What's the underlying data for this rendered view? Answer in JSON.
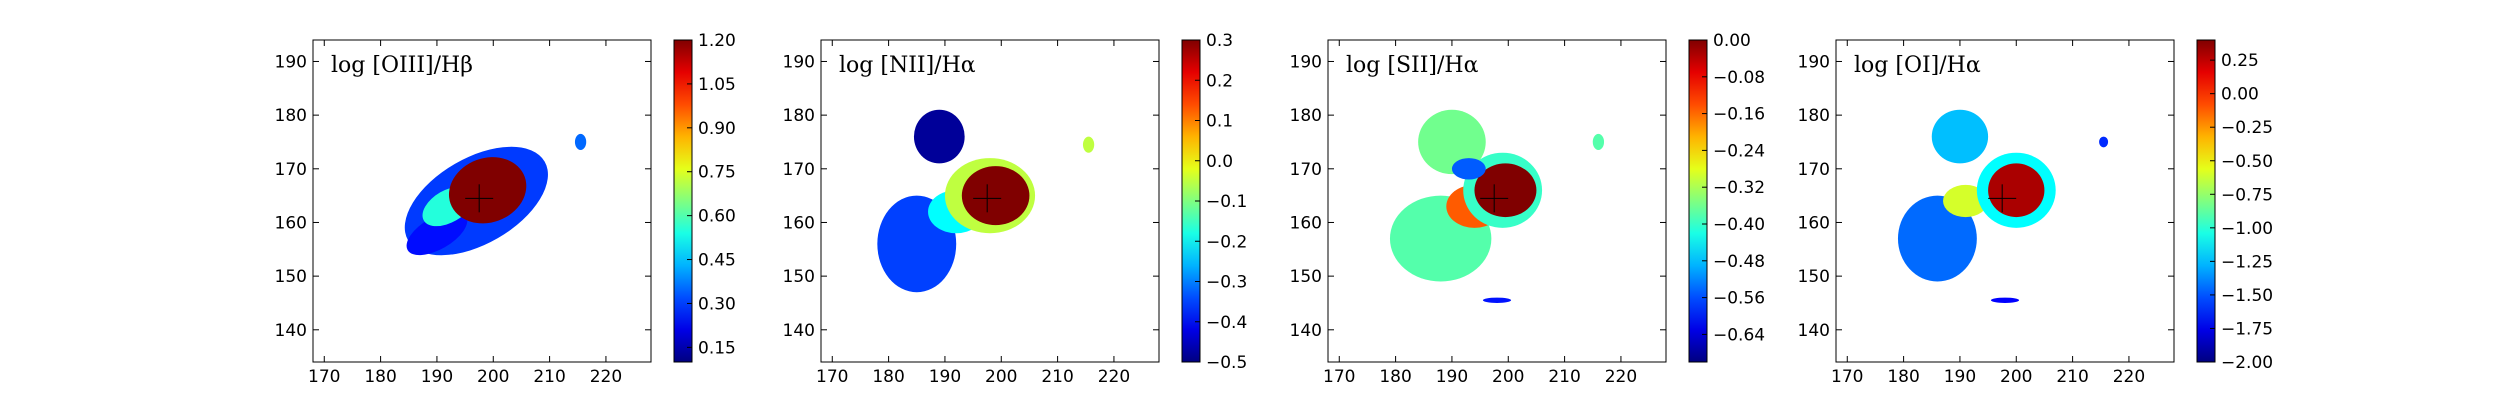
{
  "chart_data": [
    {
      "type": "heatmap",
      "title": "log [OIII]/Hβ",
      "xticks": [
        170,
        180,
        190,
        200,
        210,
        220
      ],
      "yticks": [
        140,
        150,
        160,
        170,
        180,
        190
      ],
      "xlim": [
        168,
        228
      ],
      "ylim": [
        134,
        194
      ],
      "colorbar": {
        "ticks": [
          "0.15",
          "0.30",
          "0.45",
          "0.60",
          "0.75",
          "0.90",
          "1.05",
          "1.20"
        ],
        "vmin": 0.1,
        "vmax": 1.2
      },
      "regions": [
        {
          "cx": 197,
          "cy": 164,
          "rx": 14,
          "ry": 8,
          "rot": -30,
          "value": 0.3
        },
        {
          "cx": 190,
          "cy": 158,
          "rx": 6,
          "ry": 3,
          "rot": -30,
          "value": 0.25
        },
        {
          "cx": 192,
          "cy": 163,
          "rx": 5,
          "ry": 3,
          "rot": -30,
          "value": 0.55
        },
        {
          "cx": 199,
          "cy": 166,
          "rx": 7,
          "ry": 6,
          "rot": -20,
          "value": 1.2
        },
        {
          "cx": 215.5,
          "cy": 175,
          "rx": 1,
          "ry": 1.5,
          "rot": 0,
          "value": 0.35
        }
      ],
      "cross": [
        197.5,
        164.5
      ]
    },
    {
      "type": "heatmap",
      "title": "log [NII]/Hα",
      "xticks": [
        170,
        180,
        190,
        200,
        210,
        220
      ],
      "yticks": [
        140,
        150,
        160,
        170,
        180,
        190
      ],
      "xlim": [
        168,
        228
      ],
      "ylim": [
        134,
        194
      ],
      "colorbar": {
        "ticks": [
          "0.3",
          "0.2",
          "0.1",
          "0.0",
          "−0.1",
          "−0.2",
          "−0.3",
          "−0.4",
          "−0.5"
        ],
        "vmin": -0.5,
        "vmax": 0.3
      },
      "regions": [
        {
          "cx": 185,
          "cy": 156,
          "rx": 7,
          "ry": 9,
          "rot": 0,
          "value": -0.35
        },
        {
          "cx": 192,
          "cy": 162,
          "rx": 5,
          "ry": 4,
          "rot": 0,
          "value": -0.2
        },
        {
          "cx": 198,
          "cy": 165,
          "rx": 8,
          "ry": 7,
          "rot": 0,
          "value": -0.05
        },
        {
          "cx": 199,
          "cy": 165,
          "rx": 6,
          "ry": 5.5,
          "rot": 0,
          "value": 0.3
        },
        {
          "cx": 189,
          "cy": 176,
          "rx": 4.5,
          "ry": 5,
          "rot": 0,
          "value": -0.48
        },
        {
          "cx": 215.5,
          "cy": 174.5,
          "rx": 1,
          "ry": 1.5,
          "rot": 0,
          "value": -0.05
        }
      ],
      "cross": [
        197.5,
        164.5
      ]
    },
    {
      "type": "heatmap",
      "title": "log [SII]/Hα",
      "xticks": [
        170,
        180,
        190,
        200,
        210,
        220
      ],
      "yticks": [
        140,
        150,
        160,
        170,
        180,
        190
      ],
      "xlim": [
        168,
        228
      ],
      "ylim": [
        134,
        194
      ],
      "colorbar": {
        "ticks": [
          "0.00",
          "−0.08",
          "−0.16",
          "−0.24",
          "−0.32",
          "−0.40",
          "−0.48",
          "−0.56",
          "−0.64"
        ],
        "vmin": -0.7,
        "vmax": 0.0
      },
      "regions": [
        {
          "cx": 188,
          "cy": 157,
          "rx": 9,
          "ry": 8,
          "rot": 0,
          "value": -0.38
        },
        {
          "cx": 194,
          "cy": 163,
          "rx": 5,
          "ry": 4,
          "rot": 0,
          "value": -0.15
        },
        {
          "cx": 199,
          "cy": 166,
          "rx": 7,
          "ry": 7,
          "rot": 0,
          "value": -0.4
        },
        {
          "cx": 199.5,
          "cy": 166,
          "rx": 5.5,
          "ry": 5,
          "rot": 0,
          "value": 0.0
        },
        {
          "cx": 190,
          "cy": 175,
          "rx": 6,
          "ry": 6,
          "rot": 0,
          "value": -0.36
        },
        {
          "cx": 193,
          "cy": 170,
          "rx": 3,
          "ry": 2,
          "rot": 0,
          "value": -0.55
        },
        {
          "cx": 216,
          "cy": 175,
          "rx": 1,
          "ry": 1.5,
          "rot": 0,
          "value": -0.38
        },
        {
          "cx": 198,
          "cy": 145.5,
          "rx": 2.5,
          "ry": 0.5,
          "rot": 0,
          "value": -0.6
        }
      ],
      "cross": [
        197.5,
        164.5
      ]
    },
    {
      "type": "heatmap",
      "title": "log [OI]/Hα",
      "xticks": [
        170,
        180,
        190,
        200,
        210,
        220
      ],
      "yticks": [
        140,
        150,
        160,
        170,
        180,
        190
      ],
      "xlim": [
        168,
        228
      ],
      "ylim": [
        134,
        194
      ],
      "colorbar": {
        "ticks": [
          "0.25",
          "0.00",
          "−0.25",
          "−0.50",
          "−0.75",
          "−1.00",
          "−1.25",
          "−1.50",
          "−1.75",
          "−2.00"
        ],
        "vmin": -2.0,
        "vmax": 0.4
      },
      "regions": [
        {
          "cx": 186,
          "cy": 157,
          "rx": 7,
          "ry": 8,
          "rot": 0,
          "value": -1.45
        },
        {
          "cx": 191,
          "cy": 164,
          "rx": 4,
          "ry": 3,
          "rot": 0,
          "value": -0.6
        },
        {
          "cx": 200,
          "cy": 166,
          "rx": 7,
          "ry": 7,
          "rot": 0,
          "value": -1.1
        },
        {
          "cx": 200,
          "cy": 166,
          "rx": 5,
          "ry": 5,
          "rot": 0,
          "value": 0.3
        },
        {
          "cx": 190,
          "cy": 176,
          "rx": 5,
          "ry": 5,
          "rot": 0,
          "value": -1.25
        },
        {
          "cx": 215.5,
          "cy": 175,
          "rx": 0.8,
          "ry": 1,
          "rot": 0,
          "value": -1.6
        },
        {
          "cx": 198,
          "cy": 145.5,
          "rx": 2.5,
          "ry": 0.5,
          "rot": 0,
          "value": -1.7
        }
      ],
      "cross": [
        197.5,
        164.5
      ]
    }
  ]
}
